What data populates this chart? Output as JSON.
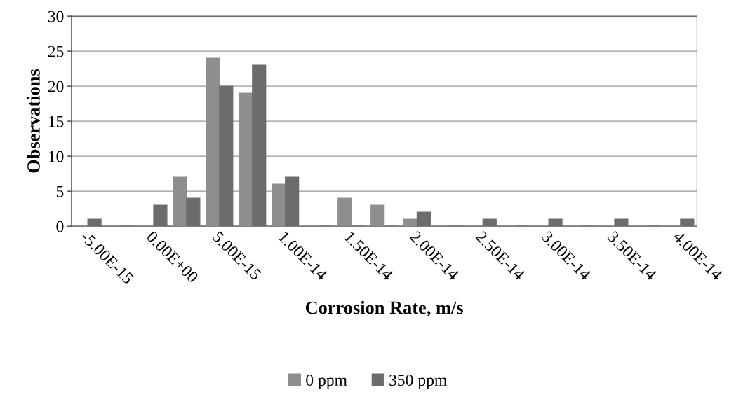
{
  "chart_data": {
    "type": "bar",
    "xlabel": "Corrosion Rate, m/s",
    "ylabel": "Observations",
    "categories": [
      "-5.00E-15",
      null,
      "0.00E+00",
      null,
      "5.00E-15",
      null,
      "1.00E-14",
      null,
      "1.50E-14",
      null,
      "2.00E-14",
      null,
      "2.50E-14",
      null,
      "3.00E-14",
      null,
      "3.50E-14",
      null,
      "4.00E-14"
    ],
    "series": [
      {
        "name": "0 ppm",
        "color": "#8e8e8e",
        "values": [
          0,
          0,
          0,
          7,
          24,
          19,
          6,
          0,
          4,
          3,
          1,
          0,
          0,
          0,
          0,
          0,
          0,
          0,
          0
        ]
      },
      {
        "name": "350 ppm",
        "color": "#6c6c6c",
        "values": [
          1,
          0,
          3,
          4,
          20,
          23,
          7,
          0,
          0,
          0,
          2,
          0,
          1,
          0,
          1,
          0,
          1,
          0,
          1
        ]
      }
    ],
    "ylim": [
      0,
      30
    ],
    "yticks": [
      0,
      5,
      10,
      15,
      20,
      25,
      30
    ],
    "grid": "y",
    "legend": "bottom"
  }
}
